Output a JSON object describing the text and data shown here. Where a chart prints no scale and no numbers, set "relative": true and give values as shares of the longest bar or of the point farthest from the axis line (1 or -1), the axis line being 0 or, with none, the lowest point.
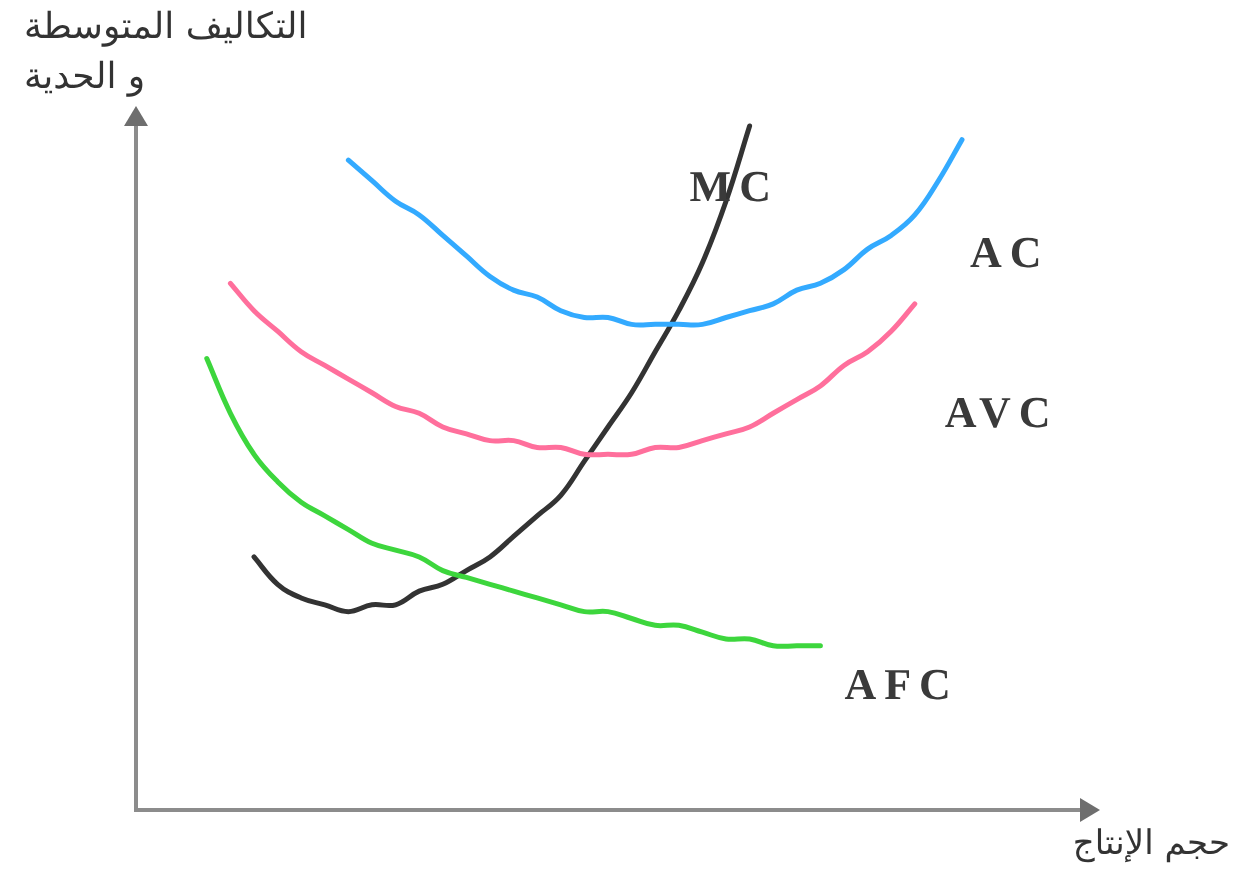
{
  "chart_data": {
    "type": "line",
    "relative": true,
    "xlabel": "حجم الإنتاج",
    "ylabel": "التكاليف المتوسطة\nو الحدية",
    "categories": [
      null,
      null,
      null,
      null,
      null,
      null,
      null,
      null,
      null,
      null,
      null,
      null,
      null,
      null,
      null,
      null,
      null,
      null,
      null,
      null,
      null,
      null,
      null,
      null,
      null,
      null,
      null,
      null,
      null,
      null,
      null,
      null,
      null,
      null,
      null,
      null,
      null,
      null,
      null,
      null,
      null
    ],
    "series": [
      {
        "name": "AC",
        "color": "#33aaff",
        "values": [
          null,
          null,
          null,
          null,
          null,
          null,
          null,
          null,
          null,
          0.95,
          0.92,
          0.89,
          0.87,
          0.84,
          0.81,
          0.78,
          0.76,
          0.75,
          0.73,
          0.72,
          0.72,
          0.71,
          0.71,
          0.71,
          0.71,
          0.72,
          0.73,
          0.74,
          0.76,
          0.77,
          0.79,
          0.82,
          0.84,
          0.87,
          0.92,
          0.98,
          null,
          null,
          null,
          null,
          null
        ]
      },
      {
        "name": "AVC",
        "color": "#ff6f9c",
        "values": [
          null,
          null,
          null,
          null,
          0.77,
          0.73,
          0.7,
          0.67,
          0.65,
          0.63,
          0.61,
          0.59,
          0.58,
          0.56,
          0.55,
          0.54,
          0.54,
          0.53,
          0.53,
          0.52,
          0.52,
          0.52,
          0.53,
          0.53,
          0.54,
          0.55,
          0.56,
          0.58,
          0.6,
          0.62,
          0.65,
          0.67,
          0.7,
          0.74,
          null,
          null,
          null,
          null,
          null,
          null,
          null
        ]
      },
      {
        "name": "AFC",
        "color": "#3dd63d",
        "values": [
          null,
          null,
          null,
          0.66,
          0.58,
          0.52,
          0.48,
          0.45,
          0.43,
          0.41,
          0.39,
          0.38,
          0.37,
          0.35,
          0.34,
          0.33,
          0.32,
          0.31,
          0.3,
          0.29,
          0.29,
          0.28,
          0.27,
          0.27,
          0.26,
          0.25,
          0.25,
          0.24,
          0.24,
          0.24,
          null,
          null,
          null,
          null,
          null,
          null,
          null,
          null,
          null,
          null,
          null
        ]
      },
      {
        "name": "MC",
        "color": "#333333",
        "values": [
          null,
          null,
          null,
          null,
          null,
          0.37,
          0.33,
          0.31,
          0.3,
          0.29,
          0.3,
          0.3,
          0.32,
          0.33,
          0.35,
          0.37,
          0.4,
          0.43,
          0.46,
          0.51,
          0.56,
          0.61,
          0.67,
          0.73,
          0.8,
          0.89,
          1,
          null,
          null,
          null,
          null,
          null,
          null,
          null,
          null,
          null,
          null,
          null,
          null,
          null,
          null
        ]
      }
    ],
    "legend": false,
    "grid": false,
    "tick_labels": false,
    "marker": "none",
    "line_style": "solid"
  }
}
